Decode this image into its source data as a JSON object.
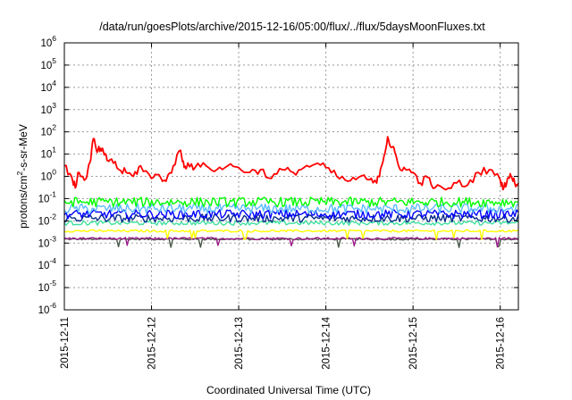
{
  "chart_data": {
    "type": "line",
    "title": "/data/run/goesPlots/archive/2015-12-16/05:00/flux/../flux/5daysMoonFluxes.txt",
    "xlabel": "Coordinated Universal Time (UTC)",
    "ylabel": "protons/cm2-s-sr-MeV",
    "ylabel_parts": {
      "pre": "protons/cm",
      "sup": "2",
      "post": "-s-sr-MeV"
    },
    "y_scale": "log",
    "ylim": [
      1e-06,
      1000000.0
    ],
    "y_ticks": [
      {
        "value": 1e-06,
        "base": "10",
        "exp": "-6"
      },
      {
        "value": 1e-05,
        "base": "10",
        "exp": "-5"
      },
      {
        "value": 0.0001,
        "base": "10",
        "exp": "-4"
      },
      {
        "value": 0.001,
        "base": "10",
        "exp": "-3"
      },
      {
        "value": 0.01,
        "base": "10",
        "exp": "-2"
      },
      {
        "value": 0.1,
        "base": "10",
        "exp": "-1"
      },
      {
        "value": 1,
        "base": "10",
        "exp": "0"
      },
      {
        "value": 10,
        "base": "10",
        "exp": "1"
      },
      {
        "value": 100,
        "base": "10",
        "exp": "2"
      },
      {
        "value": 1000,
        "base": "10",
        "exp": "3"
      },
      {
        "value": 10000,
        "base": "10",
        "exp": "4"
      },
      {
        "value": 100000,
        "base": "10",
        "exp": "5"
      },
      {
        "value": 1000000,
        "base": "10",
        "exp": "6"
      }
    ],
    "x_ticks": [
      "2015-12-11",
      "2015-12-12",
      "2015-12-13",
      "2015-12-14",
      "2015-12-15",
      "2015-12-16"
    ],
    "xlim": [
      "2015-12-11 00:00",
      "2015-12-16 05:00"
    ],
    "grid": true,
    "legend": "none",
    "series": [
      {
        "color": "#ff0000",
        "x": [
          "2015-12-11 00:00",
          "2015-12-11 02:00",
          "2015-12-11 03:00",
          "2015-12-11 04:00",
          "2015-12-11 06:00",
          "2015-12-11 07:00",
          "2015-12-11 08:00",
          "2015-12-11 09:00",
          "2015-12-11 10:00",
          "2015-12-11 11:00",
          "2015-12-11 12:00",
          "2015-12-11 13:00",
          "2015-12-11 15:00",
          "2015-12-11 17:00",
          "2015-12-11 19:00",
          "2015-12-11 21:00",
          "2015-12-12 00:00",
          "2015-12-12 02:00",
          "2015-12-12 04:00",
          "2015-12-12 06:00",
          "2015-12-12 08:00",
          "2015-12-12 09:00",
          "2015-12-12 10:00",
          "2015-12-12 12:00",
          "2015-12-12 15:00",
          "2015-12-12 18:00",
          "2015-12-12 21:00",
          "2015-12-13 00:00",
          "2015-12-13 03:00",
          "2015-12-13 06:00",
          "2015-12-13 09:00",
          "2015-12-13 12:00",
          "2015-12-13 15:00",
          "2015-12-13 18:00",
          "2015-12-13 21:00",
          "2015-12-14 00:00",
          "2015-12-14 03:00",
          "2015-12-14 06:00",
          "2015-12-14 09:00",
          "2015-12-14 12:00",
          "2015-12-14 14:00",
          "2015-12-14 15:00",
          "2015-12-14 16:00",
          "2015-12-14 17:00",
          "2015-12-14 18:00",
          "2015-12-14 19:00",
          "2015-12-14 20:00",
          "2015-12-14 22:00",
          "2015-12-15 00:00",
          "2015-12-15 02:00",
          "2015-12-15 04:00",
          "2015-12-15 06:00",
          "2015-12-15 09:00",
          "2015-12-15 12:00",
          "2015-12-15 15:00",
          "2015-12-15 18:00",
          "2015-12-15 21:00",
          "2015-12-16 00:00",
          "2015-12-16 01:00",
          "2015-12-16 02:00",
          "2015-12-16 03:00",
          "2015-12-16 04:00",
          "2015-12-16 05:00"
        ],
        "y": [
          3,
          1,
          0.3,
          1.5,
          0.8,
          4,
          50,
          12,
          18,
          9,
          5,
          6,
          2,
          1.5,
          1,
          3,
          0.8,
          1.2,
          0.6,
          3,
          15,
          2.5,
          4,
          2.5,
          3,
          2,
          3,
          2.5,
          1.5,
          2,
          0.8,
          2,
          1.5,
          2.5,
          3.5,
          2.5,
          1,
          0.6,
          0.9,
          0.7,
          0.5,
          2,
          8,
          60,
          20,
          12,
          3,
          2,
          1.5,
          0.5,
          0.9,
          0.3,
          0.25,
          0.5,
          0.4,
          1.5,
          2,
          0.7,
          0.3,
          0.8,
          1,
          0.5,
          0.5
        ]
      },
      {
        "color": "#00ff00",
        "x": [
          "2015-12-11 00:00",
          "2015-12-16 05:00"
        ],
        "y": [
          0.07,
          0.07
        ],
        "jitter": 0.22
      },
      {
        "color": "#5bbcff",
        "x": [
          "2015-12-11 00:00",
          "2015-12-16 05:00"
        ],
        "y": [
          0.035,
          0.035
        ],
        "jitter": 0.22
      },
      {
        "color": "#0000ff",
        "x": [
          "2015-12-11 00:00",
          "2015-12-16 05:00"
        ],
        "y": [
          0.02,
          0.02
        ],
        "jitter": 0.2
      },
      {
        "color": "#0a2a8c",
        "x": [
          "2015-12-11 00:00",
          "2015-12-16 05:00"
        ],
        "y": [
          0.013,
          0.013
        ],
        "jitter": 0.18
      },
      {
        "color": "#40e0a0",
        "x": [
          "2015-12-11 00:00",
          "2015-12-16 05:00"
        ],
        "y": [
          0.008,
          0.008
        ],
        "jitter": 0.1
      },
      {
        "color": "#ffff00",
        "x": [
          "2015-12-11 00:00",
          "2015-12-16 05:00"
        ],
        "y": [
          0.0035,
          0.0035
        ],
        "jitter": 0.05
      },
      {
        "color": "#9b1b8a",
        "x": [
          "2015-12-11 00:00",
          "2015-12-16 05:00"
        ],
        "y": [
          0.0016,
          0.0016
        ],
        "jitter": 0.05
      },
      {
        "color": "#4a5a4a",
        "x": [
          "2015-12-11 00:00",
          "2015-12-16 05:00"
        ],
        "y": [
          0.0015,
          0.0015
        ],
        "jitter": 0.04
      }
    ]
  }
}
